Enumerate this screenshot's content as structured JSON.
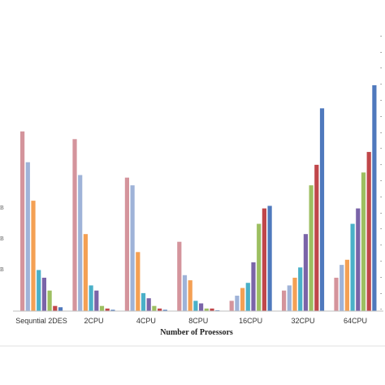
{
  "chart_data": {
    "type": "bar",
    "xlabel": "Number of Proessors",
    "ylabel": "",
    "title": "",
    "categories": [
      "Sequntial 2DES",
      "2CPU",
      "4CPU",
      "8CPU",
      "16CPU",
      "32CPU",
      "64CPU"
    ],
    "series": [
      {
        "color": "#d4949c",
        "values": [
          70,
          67,
          52,
          27,
          4,
          8,
          13
        ]
      },
      {
        "color": "#9fb3d8",
        "values": [
          58,
          53,
          49,
          14,
          6,
          10,
          18
        ]
      },
      {
        "color": "#f4a054",
        "values": [
          43,
          30,
          23,
          12,
          9,
          13,
          20
        ]
      },
      {
        "color": "#4ab0c8",
        "values": [
          16,
          10,
          7,
          4,
          11,
          17,
          34
        ]
      },
      {
        "color": "#7a64a8",
        "values": [
          13,
          8,
          5,
          3,
          19,
          30,
          40
        ]
      },
      {
        "color": "#9dbf61",
        "values": [
          8,
          2,
          2,
          1,
          34,
          49,
          54
        ]
      },
      {
        "color": "#c0474a",
        "values": [
          2,
          1,
          1,
          1,
          40,
          57,
          62
        ]
      },
      {
        "color": "#4f79bd",
        "values": [
          1.5,
          0.5,
          0.5,
          0.3,
          41,
          79,
          88
        ]
      }
    ],
    "ylim": [
      0,
      100
    ],
    "left_tick_labels": [
      "B",
      "B",
      "B"
    ],
    "grid": false,
    "legend": "none"
  }
}
